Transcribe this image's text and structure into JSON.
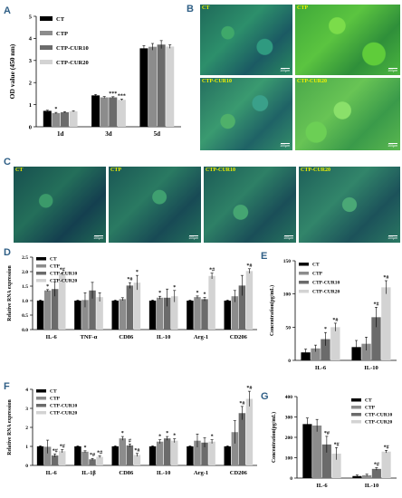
{
  "panels": {
    "a": "A",
    "b": "B",
    "c": "C",
    "d": "D",
    "e": "E",
    "f": "F",
    "g": "G"
  },
  "colors": {
    "CT": "#000000",
    "CTP": "#8c8c8c",
    "CTP-CUR10": "#6b6b6b",
    "CTP-CUR20": "#d3d3d3"
  },
  "micrographs": {
    "b": [
      {
        "label": "CT",
        "scale": "100μm"
      },
      {
        "label": "CTP",
        "scale": "100μm"
      },
      {
        "label": "CTP-CUR10",
        "scale": "100μm"
      },
      {
        "label": "CTP-CUR20",
        "scale": "100μm"
      }
    ],
    "c": [
      {
        "label": "CT",
        "scale": "100μm"
      },
      {
        "label": "CTP",
        "scale": "100μm"
      },
      {
        "label": "CTP-CUR10",
        "scale": "100μm"
      },
      {
        "label": "CTP-CUR20",
        "scale": "100μm"
      }
    ]
  },
  "chart_data": [
    {
      "id": "A",
      "type": "bar",
      "ylabel": "OD value (450 nm)",
      "ylim": [
        0,
        5
      ],
      "yticks": [
        0,
        1,
        2,
        3,
        4,
        5
      ],
      "categories": [
        "1d",
        "3d",
        "5d"
      ],
      "series": [
        {
          "name": "CT",
          "values": [
            0.72,
            1.42,
            3.55
          ],
          "err": [
            0.03,
            0.04,
            0.12
          ]
        },
        {
          "name": "CTP",
          "values": [
            0.62,
            1.33,
            3.62
          ],
          "err": [
            0.03,
            0.04,
            0.15
          ]
        },
        {
          "name": "CTP-CUR10",
          "values": [
            0.66,
            1.33,
            3.72
          ],
          "err": [
            0.02,
            0.03,
            0.18
          ]
        },
        {
          "name": "CTP-CUR20",
          "values": [
            0.7,
            1.22,
            3.63
          ],
          "err": [
            0.02,
            0.03,
            0.08
          ]
        }
      ],
      "annotations": [
        [
          "",
          "*",
          "",
          ""
        ],
        [
          "",
          "",
          "***",
          "***"
        ],
        [
          "",
          "",
          "",
          ""
        ]
      ],
      "legend": "top-left"
    },
    {
      "id": "D",
      "type": "bar",
      "ylabel": "Relative RNA expression",
      "ylim": [
        0,
        2.5
      ],
      "yticks": [
        0.0,
        0.5,
        1.0,
        1.5,
        2.0,
        2.5
      ],
      "categories": [
        "IL-6",
        "TNF-α",
        "CD86",
        "IL-10",
        "Arg-1",
        "CD206"
      ],
      "series": [
        {
          "name": "CT",
          "values": [
            1.0,
            1.0,
            1.0,
            1.0,
            1.0,
            1.0
          ],
          "err": [
            0.02,
            0.02,
            0.02,
            0.02,
            0.02,
            0.02
          ]
        },
        {
          "name": "CTP",
          "values": [
            1.35,
            1.02,
            1.05,
            1.1,
            1.12,
            1.15
          ],
          "err": [
            0.03,
            0.25,
            0.05,
            0.05,
            0.04,
            0.2
          ]
        },
        {
          "name": "CTP-CUR10",
          "values": [
            1.4,
            1.35,
            1.52,
            1.1,
            1.05,
            1.52
          ],
          "err": [
            0.25,
            0.28,
            0.1,
            0.3,
            0.06,
            0.35
          ]
        },
        {
          "name": "CTP-CUR20",
          "values": [
            1.92,
            1.12,
            1.62,
            1.15,
            1.85,
            2.02
          ],
          "err": [
            0.03,
            0.15,
            0.25,
            0.2,
            0.1,
            0.08
          ]
        }
      ],
      "annotations": [
        [
          "",
          "*",
          "",
          "*#"
        ],
        [
          "",
          "",
          "",
          ""
        ],
        [
          "",
          "",
          "*#",
          "*"
        ],
        [
          "",
          "*",
          "",
          "*"
        ],
        [
          "",
          "*",
          "*",
          "*#"
        ],
        [
          "",
          "",
          "",
          "*#"
        ]
      ],
      "legend": "top-left"
    },
    {
      "id": "E",
      "type": "bar",
      "ylabel": "Concentration(pg/mL)",
      "ylim": [
        0,
        150
      ],
      "yticks": [
        0,
        50,
        100,
        150
      ],
      "categories": [
        "IL-6",
        "IL-10"
      ],
      "series": [
        {
          "name": "CT",
          "values": [
            12,
            20
          ],
          "err": [
            5,
            10
          ]
        },
        {
          "name": "CTP",
          "values": [
            18,
            25
          ],
          "err": [
            5,
            10
          ]
        },
        {
          "name": "CTP-CUR10",
          "values": [
            32,
            65
          ],
          "err": [
            10,
            15
          ]
        },
        {
          "name": "CTP-CUR20",
          "values": [
            50,
            110
          ],
          "err": [
            6,
            10
          ]
        }
      ],
      "annotations": [
        [
          "",
          "",
          "*",
          "*#"
        ],
        [
          "",
          "",
          "*#",
          "*#"
        ]
      ],
      "legend": "top-left"
    },
    {
      "id": "F",
      "type": "bar",
      "ylabel": "Relative RNA expression",
      "ylim": [
        0,
        4
      ],
      "yticks": [
        0,
        1,
        2,
        3,
        4
      ],
      "categories": [
        "IL-6",
        "IL-1β",
        "CD86",
        "IL-10",
        "Arg-1",
        "CD206"
      ],
      "series": [
        {
          "name": "CT",
          "values": [
            1.0,
            1.0,
            1.0,
            1.0,
            1.0,
            1.0
          ],
          "err": [
            0.03,
            0.03,
            0.03,
            0.03,
            0.03,
            0.03
          ]
        },
        {
          "name": "CTP",
          "values": [
            0.98,
            0.72,
            1.42,
            1.25,
            1.3,
            1.75
          ],
          "err": [
            0.35,
            0.05,
            0.1,
            0.1,
            0.35,
            0.6
          ]
        },
        {
          "name": "CTP-CUR10",
          "values": [
            0.52,
            0.32,
            1.05,
            1.42,
            1.2,
            2.75
          ],
          "err": [
            0.08,
            0.05,
            0.08,
            0.1,
            0.25,
            0.35
          ]
        },
        {
          "name": "CTP-CUR20",
          "values": [
            0.75,
            0.45,
            0.55,
            1.3,
            1.25,
            3.5
          ],
          "err": [
            0.08,
            0.05,
            0.08,
            0.1,
            0.1,
            0.4
          ]
        }
      ],
      "annotations": [
        [
          "",
          "",
          "*#",
          "*#"
        ],
        [
          "",
          "*",
          "*#",
          "*#"
        ],
        [
          "",
          "*",
          "#",
          "*#"
        ],
        [
          "",
          "*",
          "*",
          "*"
        ],
        [
          "",
          "",
          "",
          "*"
        ],
        [
          "",
          "",
          "*#",
          "*#"
        ]
      ],
      "legend": "top-left"
    },
    {
      "id": "G",
      "type": "bar",
      "ylabel": "Concentration(pg/mL)",
      "ylim": [
        0,
        400
      ],
      "yticks": [
        0,
        100,
        200,
        300,
        400
      ],
      "categories": [
        "IL-6",
        "IL-10"
      ],
      "series": [
        {
          "name": "CT",
          "values": [
            265,
            10
          ],
          "err": [
            30,
            5
          ]
        },
        {
          "name": "CTP",
          "values": [
            258,
            14
          ],
          "err": [
            30,
            5
          ]
        },
        {
          "name": "CTP-CUR10",
          "values": [
            165,
            45
          ],
          "err": [
            40,
            6
          ]
        },
        {
          "name": "CTP-CUR20",
          "values": [
            120,
            130
          ],
          "err": [
            30,
            6
          ]
        }
      ],
      "annotations": [
        [
          "",
          "",
          "*#",
          "*#"
        ],
        [
          "",
          "",
          "*#",
          "*#"
        ]
      ],
      "legend": "top-right"
    }
  ]
}
